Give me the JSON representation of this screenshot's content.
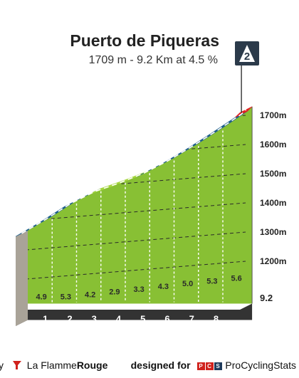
{
  "header": {
    "climb_name": "Puerto de Piqueras",
    "stats": "1709 m - 9.2 Km at 4.5 %",
    "category_badge": "2"
  },
  "footer": {
    "by_fragment": "y",
    "brand_part1": "La Flamme",
    "brand_part2": "Rouge",
    "designed_for": "designed for",
    "pcs_letters": [
      "P",
      "C",
      "S"
    ],
    "pcs_name": "ProCyclingStats"
  },
  "colors": {
    "grade_low": "#a4d63c",
    "grade_mid": "#1f5f8b",
    "grade_high": "#e02424",
    "slope_green": "#88c034",
    "ground": "#333333",
    "base_wall": "#a9a398",
    "badge": "#2b3a4a"
  },
  "chart_data": {
    "type": "area",
    "title": "Puerto de Piqueras",
    "subtitle": "1709 m - 9.2 Km at 4.5 %",
    "x_unit": "km",
    "y_unit": "m",
    "ylim": [
      1100,
      1709
    ],
    "y_ticks": [
      "1200m",
      "1300m",
      "1400m",
      "1500m",
      "1600m",
      "1700m"
    ],
    "y_tick_values": [
      1200,
      1300,
      1400,
      1500,
      1600,
      1700
    ],
    "km_markers": [
      "1",
      "2",
      "3",
      "4",
      "5",
      "6",
      "7",
      "8"
    ],
    "final_distance_label": "9.2",
    "segments": [
      {
        "km_start": 0,
        "km_end": 1,
        "gradient": 4.9,
        "label": "4.9"
      },
      {
        "km_start": 1,
        "km_end": 2,
        "gradient": 5.3,
        "label": "5.3"
      },
      {
        "km_start": 2,
        "km_end": 3,
        "gradient": 4.2,
        "label": "4.2"
      },
      {
        "km_start": 3,
        "km_end": 4,
        "gradient": 2.9,
        "label": "2.9"
      },
      {
        "km_start": 4,
        "km_end": 5,
        "gradient": 3.3,
        "label": "3.3"
      },
      {
        "km_start": 5,
        "km_end": 6,
        "gradient": 4.3,
        "label": "4.3"
      },
      {
        "km_start": 6,
        "km_end": 7,
        "gradient": 5.0,
        "label": "5.0"
      },
      {
        "km_start": 7,
        "km_end": 8,
        "gradient": 5.3,
        "label": "5.3"
      },
      {
        "km_start": 8,
        "km_end": 9,
        "gradient": 5.6,
        "label": "5.6"
      },
      {
        "km_start": 9,
        "km_end": 9.2,
        "gradient": 8.0,
        "label": ""
      }
    ]
  }
}
